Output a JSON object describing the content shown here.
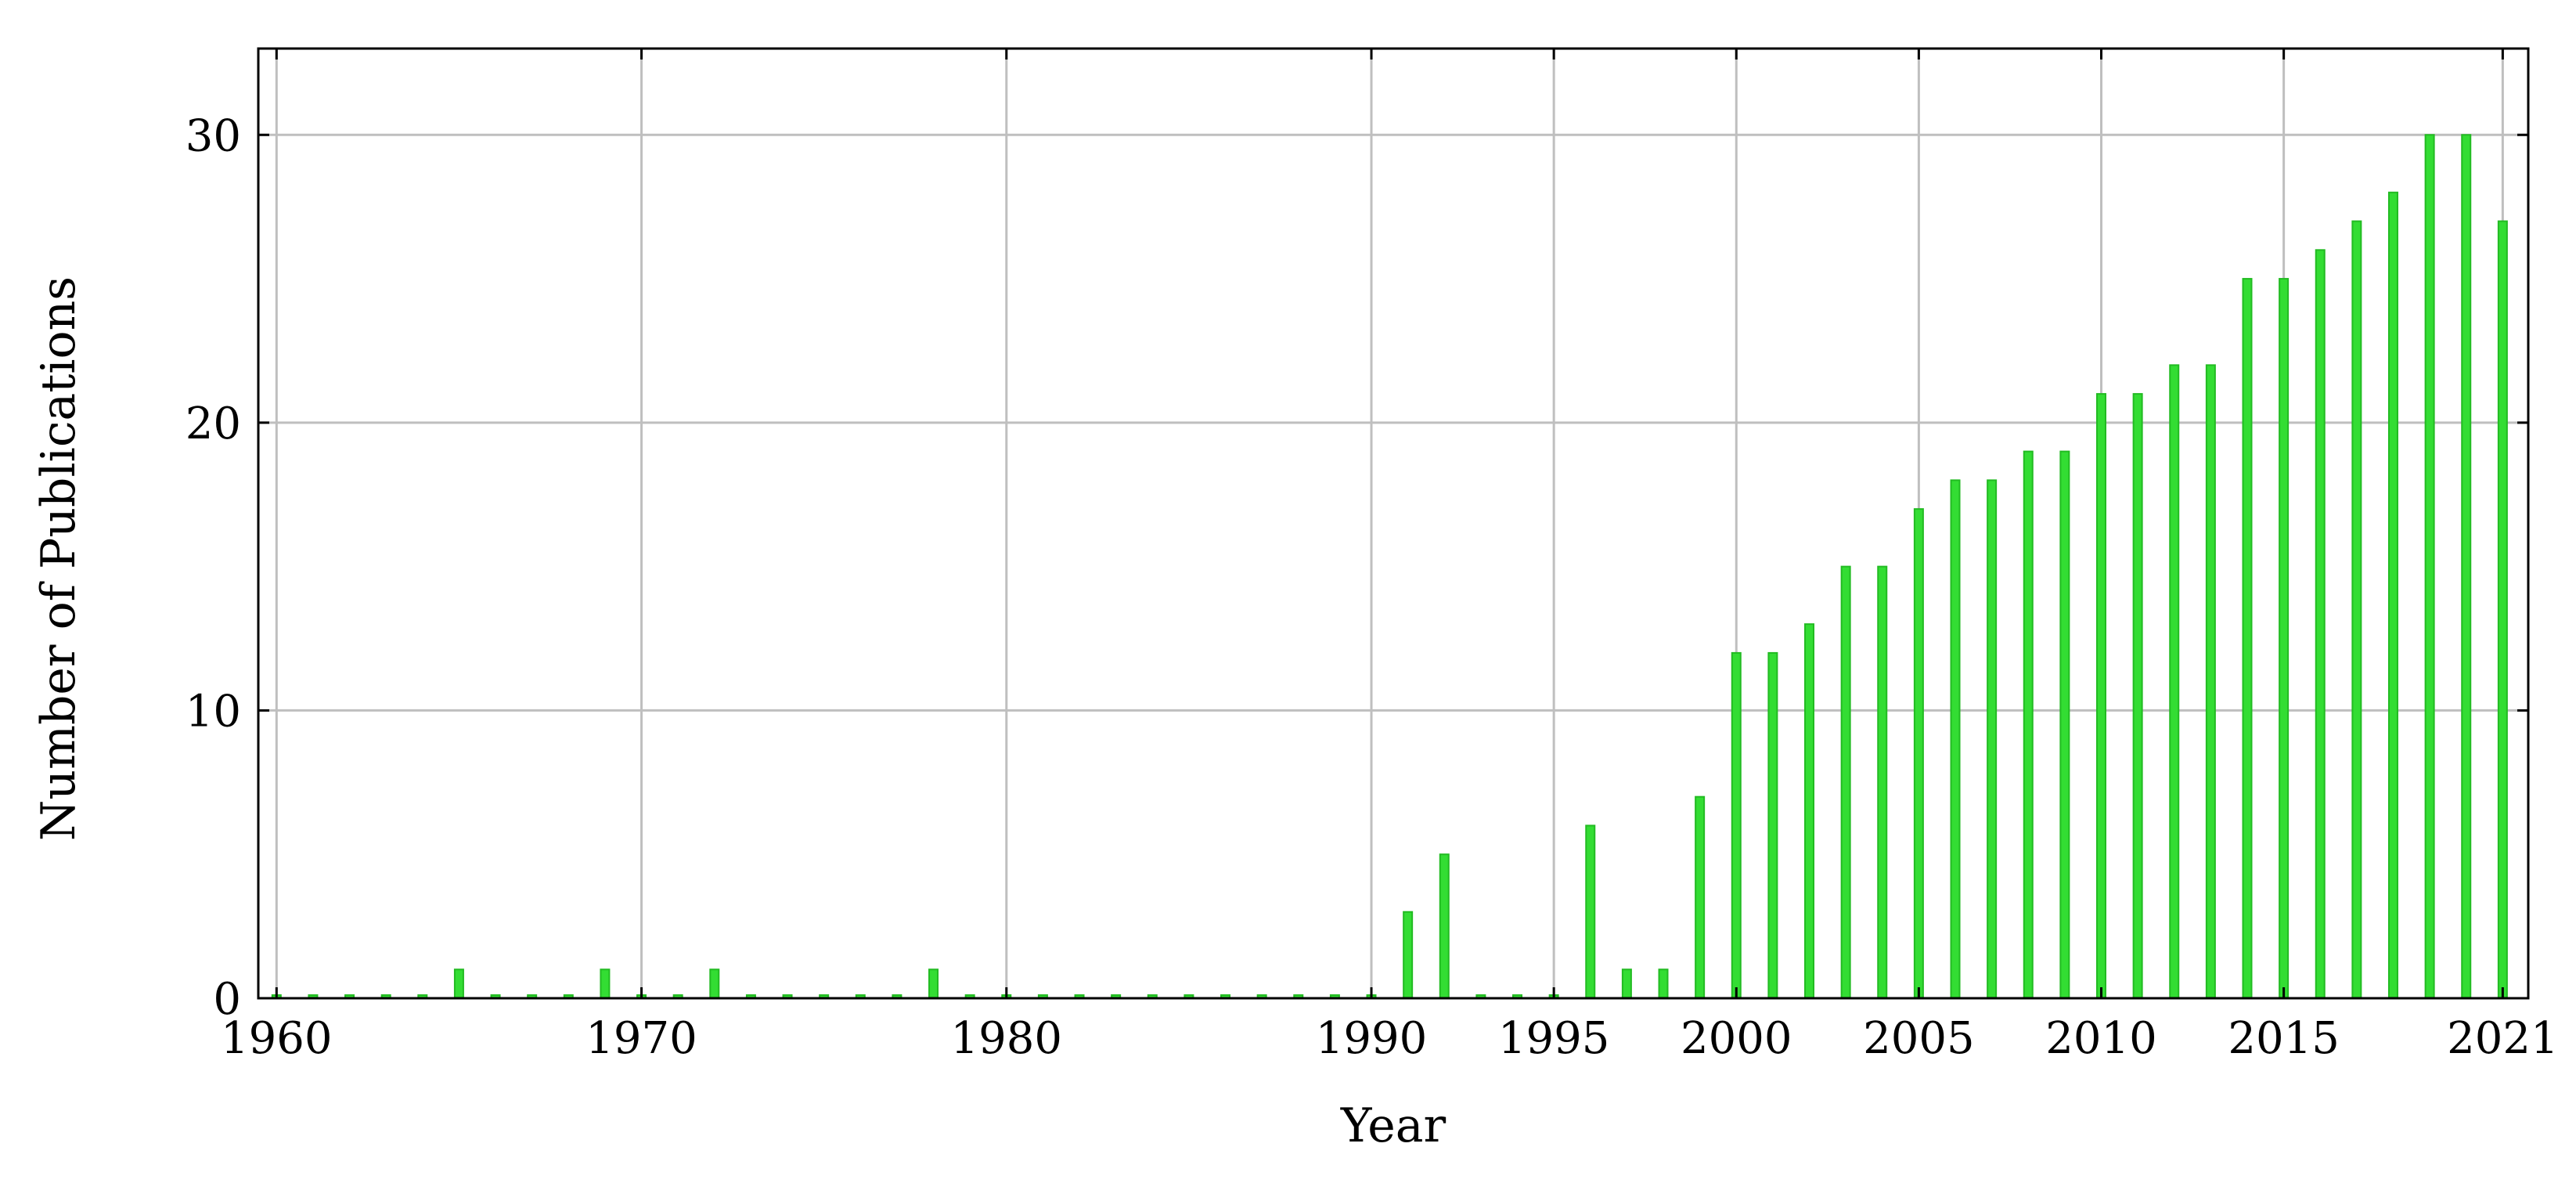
{
  "chart_data": {
    "type": "bar",
    "title": "",
    "xlabel": "Year",
    "ylabel": "Number of Publications",
    "x": [
      1960,
      1961,
      1962,
      1963,
      1964,
      1965,
      1966,
      1967,
      1968,
      1969,
      1970,
      1971,
      1972,
      1973,
      1974,
      1975,
      1976,
      1977,
      1978,
      1979,
      1980,
      1981,
      1982,
      1983,
      1984,
      1985,
      1986,
      1987,
      1988,
      1989,
      1990,
      1991,
      1992,
      1993,
      1994,
      1995,
      1996,
      1997,
      1998,
      1999,
      2000,
      2001,
      2002,
      2003,
      2004,
      2005,
      2006,
      2007,
      2008,
      2009,
      2010,
      2011,
      2012,
      2013,
      2014,
      2015,
      2016,
      2017,
      2018,
      2019,
      2020,
      2021
    ],
    "values": [
      0,
      0,
      0,
      0,
      0,
      1,
      0,
      0,
      0,
      1,
      0,
      0,
      1,
      0,
      0,
      0,
      0,
      0,
      1,
      0,
      0,
      0,
      0,
      0,
      0,
      0,
      0,
      0,
      0,
      0,
      0,
      3,
      5,
      0,
      0,
      0,
      6,
      1,
      1,
      7,
      12,
      12,
      13,
      15,
      15,
      17,
      18,
      18,
      19,
      19,
      21,
      21,
      22,
      22,
      25,
      25,
      26,
      27,
      28,
      30,
      30,
      27
    ],
    "xlim": [
      1959.5,
      2021.7
    ],
    "ylim": [
      0,
      33
    ],
    "x_ticks": [
      1960,
      1970,
      1980,
      1990,
      1995,
      2000,
      2005,
      2010,
      2015,
      2021
    ],
    "x_tick_labels": [
      "1960",
      "1970",
      "1980",
      "1990",
      "1995",
      "2000",
      "2005",
      "2010",
      "2015",
      "2021"
    ],
    "y_ticks": [
      0,
      10,
      20,
      30
    ],
    "y_tick_labels": [
      "0",
      "10",
      "20",
      "30"
    ],
    "grid": true,
    "bar_color": "#33dd33",
    "bar_edge_color": "#22bb22",
    "grid_color": "#bfbfbf",
    "axis_color": "#000000"
  }
}
